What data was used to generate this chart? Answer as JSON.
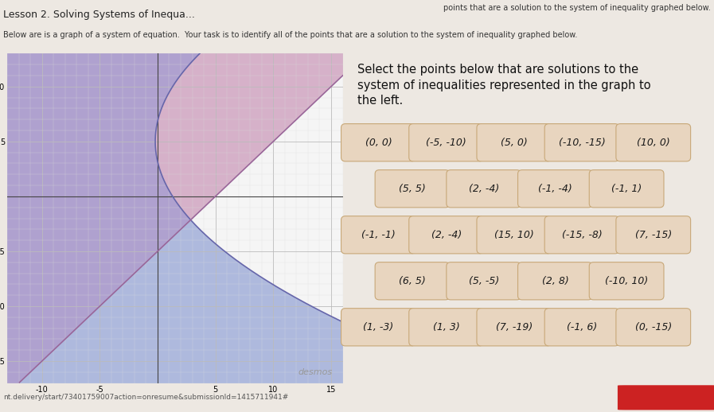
{
  "page_bg": "#ede8e2",
  "graph_bg": "#f5f5f5",
  "graph_xlim": [
    -13,
    16
  ],
  "graph_ylim": [
    -17,
    13
  ],
  "grid_major_color": "#bbbbbb",
  "grid_minor_color": "#dddddd",
  "axis_color": "#444444",
  "blue_color": [
    0.53,
    0.6,
    0.82,
    0.65
  ],
  "pink_color": [
    0.78,
    0.55,
    0.7,
    0.65
  ],
  "overlap_color": [
    0.62,
    0.55,
    0.78,
    0.8
  ],
  "curve_color": "#6666aa",
  "line_color": "#996699",
  "right_title": "Select the points below that are solutions to the\nsystem of inequalities represented in the graph to\nthe left.",
  "button_bg": "#e8d5bf",
  "button_border": "#c8a878",
  "points_rows": [
    [
      "(0, 0)",
      "(-5, -10)",
      "(5, 0)",
      "(-10, -15)",
      "(10, 0)"
    ],
    [
      "(5, 5)",
      "(2, -4)",
      "(-1, -4)",
      "(-1, 1)"
    ],
    [
      "(-1, -1)",
      "(2, -4)",
      "(15, 10)",
      "(-15, -8)",
      "(7, -15)"
    ],
    [
      "(6, 5)",
      "(5, -5)",
      "(2, 8)",
      "(-10, 10)"
    ],
    [
      "(1, -3)",
      "(1, 3)",
      "(7, -19)",
      "(-1, 6)",
      "(0, -15)"
    ]
  ],
  "desmos_text": "desmos",
  "header_title": "Lesson 2. Solving Systems of Inequa...",
  "header_subtitle": "Below are is a graph of a system of equation.  Your task is to identify all of the points that are a solution to the system of inequality graphed below.",
  "top_right_text": "points that are a solution to the system of inequality graphed below.",
  "bottom_url": "nt.delivery/start/73401759007action=onresume&submissionId=1415711941#",
  "sign_out_color": "#cc2222"
}
